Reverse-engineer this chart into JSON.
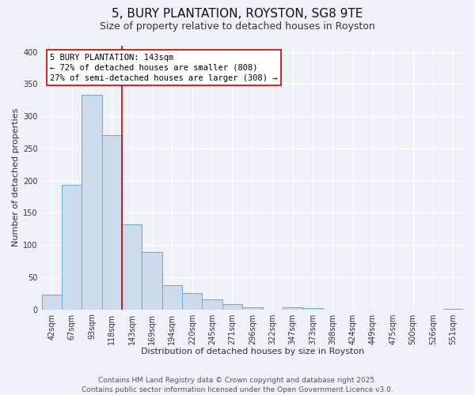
{
  "title": "5, BURY PLANTATION, ROYSTON, SG8 9TE",
  "subtitle": "Size of property relative to detached houses in Royston",
  "xlabel": "Distribution of detached houses by size in Royston",
  "ylabel": "Number of detached properties",
  "bar_color": "#ccdaeb",
  "bar_edge_color": "#6aaad4",
  "background_color": "#eef2f7",
  "grid_color": "#ffffff",
  "categories": [
    "42sqm",
    "67sqm",
    "93sqm",
    "118sqm",
    "143sqm",
    "169sqm",
    "194sqm",
    "220sqm",
    "245sqm",
    "271sqm",
    "296sqm",
    "322sqm",
    "347sqm",
    "373sqm",
    "398sqm",
    "424sqm",
    "449sqm",
    "475sqm",
    "500sqm",
    "526sqm",
    "551sqm"
  ],
  "values": [
    23,
    193,
    333,
    271,
    132,
    89,
    38,
    25,
    16,
    8,
    3,
    0,
    3,
    2,
    0,
    0,
    0,
    0,
    0,
    0,
    1
  ],
  "ylim": [
    0,
    410
  ],
  "yticks": [
    0,
    50,
    100,
    150,
    200,
    250,
    300,
    350,
    400
  ],
  "vline_index": 4,
  "vline_color": "#cc0000",
  "annotation_line1": "5 BURY PLANTATION: 143sqm",
  "annotation_line2": "← 72% of detached houses are smaller (808)",
  "annotation_line3": "27% of semi-detached houses are larger (308) →",
  "annotation_box_color": "white",
  "annotation_box_edge": "#cc0000",
  "footer_line1": "Contains HM Land Registry data © Crown copyright and database right 2025.",
  "footer_line2": "Contains public sector information licensed under the Open Government Licence v3.0.",
  "title_fontsize": 11,
  "subtitle_fontsize": 9,
  "axis_label_fontsize": 8,
  "tick_fontsize": 7,
  "annotation_fontsize": 7.5,
  "footer_fontsize": 6.5
}
